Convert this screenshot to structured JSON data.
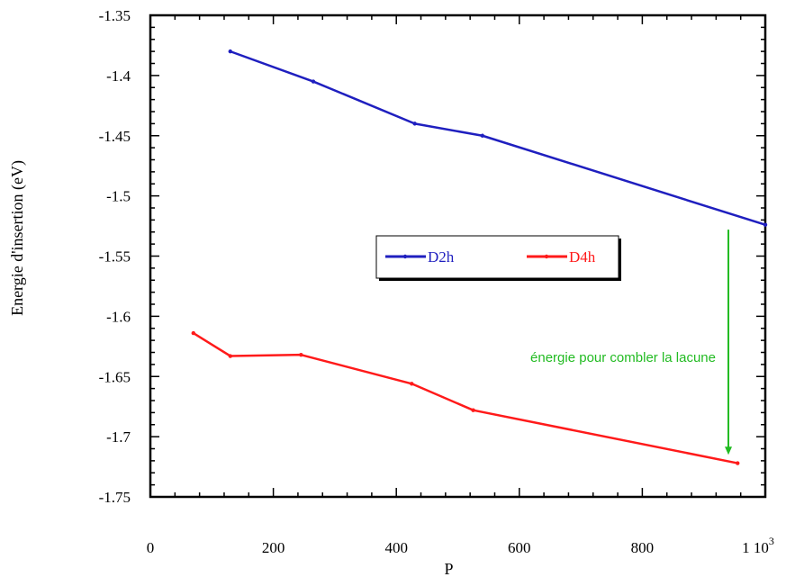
{
  "chart_data": {
    "type": "line",
    "xlabel": "P",
    "ylabel": "Energie d'insertion (eV)",
    "xlim": [
      0,
      1000
    ],
    "ylim": [
      -1.75,
      -1.35
    ],
    "x_ticks": [
      0,
      200,
      400,
      600,
      800,
      1000
    ],
    "x_tick_labels": [
      "0",
      "200",
      "400",
      "600",
      "800",
      "1 10"
    ],
    "x_last_tick_exponent": "3",
    "y_ticks": [
      -1.35,
      -1.4,
      -1.45,
      -1.5,
      -1.55,
      -1.6,
      -1.65,
      -1.7,
      -1.75
    ],
    "y_tick_labels": [
      "-1.35",
      "-1.4",
      "-1.45",
      "-1.5",
      "-1.55",
      "-1.6",
      "-1.65",
      "-1.7",
      "-1.75"
    ],
    "grid": false,
    "legend_position": "center",
    "series": [
      {
        "name": "D2h",
        "color": "#1f1fbf",
        "x": [
          130,
          265,
          430,
          540,
          1000
        ],
        "y": [
          -1.38,
          -1.405,
          -1.44,
          -1.45,
          -1.524
        ]
      },
      {
        "name": "D4h",
        "color": "#ff1a1a",
        "x": [
          70,
          130,
          245,
          425,
          525,
          955
        ],
        "y": [
          -1.614,
          -1.633,
          -1.632,
          -1.656,
          -1.678,
          -1.722
        ]
      }
    ],
    "annotation": {
      "text": "énergie pour combler la lacune",
      "color": "#22bb22",
      "arrow_x": 940,
      "arrow_y_from": -1.528,
      "arrow_y_to": -1.715
    }
  }
}
